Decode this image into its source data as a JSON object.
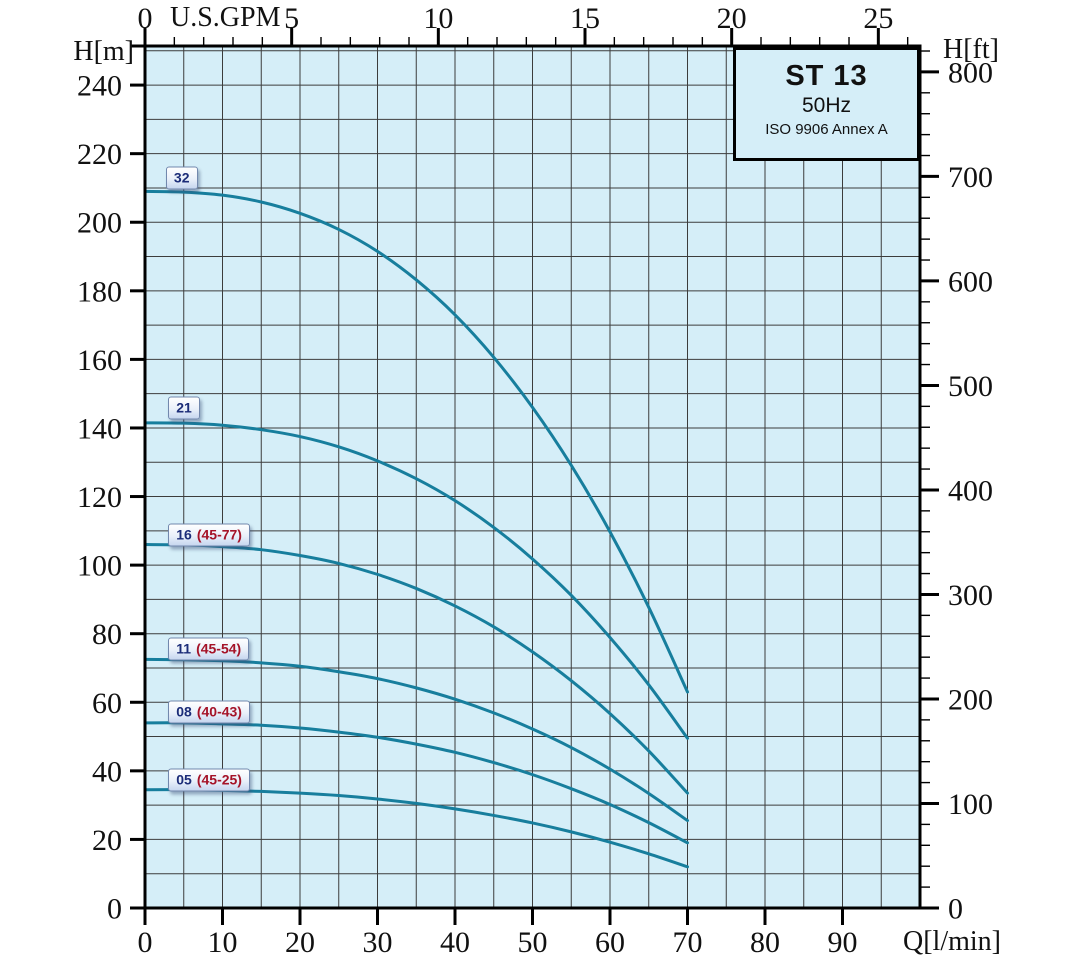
{
  "title_box": {
    "model": "ST 13",
    "frequency": "50Hz",
    "standard": "ISO 9906 Annex A"
  },
  "axes": {
    "left": {
      "label": "H[m]",
      "ticks": [
        0,
        20,
        40,
        60,
        80,
        100,
        120,
        140,
        160,
        180,
        200,
        220,
        240
      ]
    },
    "right": {
      "label": "H[ft]",
      "ticks": [
        0,
        100,
        200,
        300,
        400,
        500,
        600,
        700,
        800
      ],
      "minor_step": 20
    },
    "bottom": {
      "label": "Q[l/min]",
      "ticks": [
        0,
        10,
        20,
        30,
        40,
        50,
        60,
        70,
        80,
        90
      ]
    },
    "top": {
      "label": "U.S.GPM",
      "ticks": [
        0,
        5,
        10,
        15,
        20,
        25
      ],
      "minor_step": 1
    }
  },
  "chart_data": {
    "type": "line",
    "title": "ST 13 pump performance curves, 50Hz, ISO 9906 Annex A",
    "xlabel": "Q[l/min]",
    "x2label": "U.S.GPM",
    "ylabel": "H[m]",
    "y2label": "H[ft]",
    "xlim": [
      0,
      100
    ],
    "ylim": [
      0,
      251.4
    ],
    "lmin_per_gpm": 3.785,
    "ft_per_m": 3.2808,
    "grid": {
      "x_step": 5,
      "y_step": 10,
      "on": true
    },
    "legend_position": "badges-left",
    "series": [
      {
        "name": "32",
        "label_model": "32",
        "label_range": "",
        "label_pos": {
          "q": 2.7,
          "h": 213.0
        },
        "points": [
          [
            0,
            209
          ],
          [
            5,
            208.8
          ],
          [
            10,
            207.9
          ],
          [
            15,
            205.9
          ],
          [
            20,
            202.6
          ],
          [
            25,
            197.9
          ],
          [
            30,
            191.5
          ],
          [
            35,
            183.2
          ],
          [
            40,
            173.0
          ],
          [
            45,
            160.6
          ],
          [
            50,
            146.0
          ],
          [
            55,
            129.1
          ],
          [
            60,
            109.7
          ],
          [
            65,
            87.7
          ],
          [
            70,
            63.0
          ]
        ]
      },
      {
        "name": "21",
        "label_model": "21",
        "label_range": "",
        "label_pos": {
          "q": 3.0,
          "h": 145.7
        },
        "points": [
          [
            0,
            141.5
          ],
          [
            5,
            141.4
          ],
          [
            10,
            140.8
          ],
          [
            15,
            139.5
          ],
          [
            20,
            137.5
          ],
          [
            25,
            134.5
          ],
          [
            30,
            130.4
          ],
          [
            35,
            125.2
          ],
          [
            40,
            118.8
          ],
          [
            45,
            111.0
          ],
          [
            50,
            101.8
          ],
          [
            55,
            91.2
          ],
          [
            60,
            78.9
          ],
          [
            65,
            65.1
          ],
          [
            70,
            49.5
          ]
        ]
      },
      {
        "name": "16 (45-77)",
        "label_model": "16",
        "label_range": "(45-77)",
        "label_pos": {
          "q": 3.0,
          "h": 108.9
        },
        "points": [
          [
            0,
            106
          ],
          [
            5,
            105.9
          ],
          [
            10,
            105.4
          ],
          [
            15,
            104.5
          ],
          [
            20,
            102.8
          ],
          [
            25,
            100.5
          ],
          [
            30,
            97.3
          ],
          [
            35,
            93.2
          ],
          [
            40,
            88.1
          ],
          [
            45,
            82.0
          ],
          [
            50,
            74.7
          ],
          [
            55,
            66.3
          ],
          [
            60,
            56.7
          ],
          [
            65,
            45.8
          ],
          [
            70,
            33.5
          ]
        ]
      },
      {
        "name": "11 (45-54)",
        "label_model": "11",
        "label_range": "(45-54)",
        "label_pos": {
          "q": 3.0,
          "h": 75.4
        },
        "points": [
          [
            0,
            72.5
          ],
          [
            5,
            72.4
          ],
          [
            10,
            72.1
          ],
          [
            15,
            71.5
          ],
          [
            20,
            70.5
          ],
          [
            25,
            68.9
          ],
          [
            30,
            66.9
          ],
          [
            35,
            64.2
          ],
          [
            40,
            60.9
          ],
          [
            45,
            56.9
          ],
          [
            50,
            52.2
          ],
          [
            55,
            46.8
          ],
          [
            60,
            40.5
          ],
          [
            65,
            33.4
          ],
          [
            70,
            25.5
          ]
        ]
      },
      {
        "name": "08 (40-43)",
        "label_model": "08",
        "label_range": "(40-43)",
        "label_pos": {
          "q": 3.0,
          "h": 57.3
        },
        "points": [
          [
            0,
            54
          ],
          [
            5,
            54
          ],
          [
            10,
            53.7
          ],
          [
            15,
            53.3
          ],
          [
            20,
            52.5
          ],
          [
            25,
            51.3
          ],
          [
            30,
            49.8
          ],
          [
            35,
            47.8
          ],
          [
            40,
            45.4
          ],
          [
            45,
            42.4
          ],
          [
            50,
            38.9
          ],
          [
            55,
            34.8
          ],
          [
            60,
            30.2
          ],
          [
            65,
            24.9
          ],
          [
            70,
            19.0
          ]
        ]
      },
      {
        "name": "05 (45-25)",
        "label_model": "05",
        "label_range": "(45-25)",
        "label_pos": {
          "q": 3.0,
          "h": 37.2
        },
        "points": [
          [
            0,
            34.5
          ],
          [
            5,
            34.5
          ],
          [
            10,
            34.3
          ],
          [
            15,
            34.0
          ],
          [
            20,
            33.5
          ],
          [
            25,
            32.8
          ],
          [
            30,
            31.8
          ],
          [
            35,
            30.5
          ],
          [
            40,
            28.9
          ],
          [
            45,
            27.0
          ],
          [
            50,
            24.8
          ],
          [
            55,
            22.2
          ],
          [
            60,
            19.2
          ],
          [
            65,
            15.8
          ],
          [
            70,
            12.0
          ]
        ]
      }
    ]
  },
  "colors": {
    "plot_background": "#d5eef8",
    "curve": "#177e9d",
    "grid": "#3c3c3c",
    "axis": "#000000",
    "tick_label": "#111111",
    "badge_model_text": "#1b2c78",
    "badge_range_text": "#a51328"
  }
}
